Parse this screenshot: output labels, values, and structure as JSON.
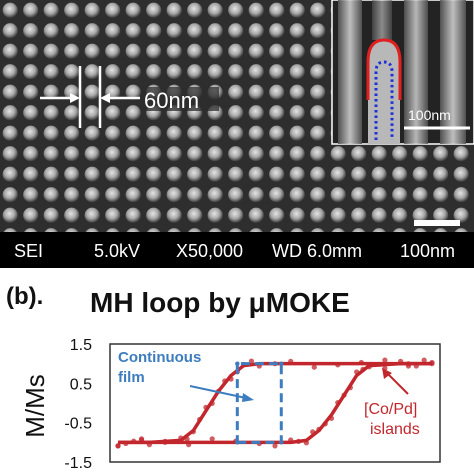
{
  "panel_a": {
    "spacing_label": "60nm",
    "inset_scale_label": "100nm",
    "info_bar": {
      "detector": "SEI",
      "voltage": "5.0kV",
      "magnification": "X50,000",
      "working_distance": "WD 6.0mm",
      "scale": "100nm"
    },
    "colors": {
      "cap_outline": "#e02020",
      "core_outline": "#1c2fd8",
      "info_bar": "#000000"
    }
  },
  "panel_b": {
    "label": "(b).",
    "annotations": {
      "continuous_1": "Continuous",
      "continuous_2": "film",
      "islands_1": "[Co/Pd]",
      "islands_2": "islands"
    },
    "colors": {
      "islands": "#c1272d",
      "film": "#3d7dbf"
    }
  },
  "chart_data": {
    "type": "line",
    "title": "MH loop by μMOKE",
    "xlabel": "",
    "ylabel": "M/Ms",
    "ylim": [
      -1.5,
      1.5
    ],
    "yticks": [
      "1.5",
      "0.5",
      "-0.5",
      "-1.5"
    ],
    "grid": false,
    "series": [
      {
        "name": "[Co/Pd] islands",
        "x": [
          0,
          5,
          10,
          20,
          24,
          28,
          32,
          36,
          40,
          45,
          55,
          70,
          85,
          100
        ],
        "y": [
          -1.0,
          -1.0,
          -1.0,
          -0.95,
          -0.7,
          -0.2,
          0.3,
          0.7,
          0.95,
          1.0,
          1.0,
          1.0,
          1.0,
          1.0
        ]
      },
      {
        "name": "[Co/Pd] islands",
        "x": [
          100,
          95,
          90,
          80,
          76,
          72,
          68,
          64,
          60,
          55,
          45,
          30,
          15,
          0
        ],
        "y": [
          1.0,
          1.0,
          1.0,
          0.95,
          0.7,
          0.2,
          -0.3,
          -0.7,
          -0.95,
          -1.0,
          -1.0,
          -1.0,
          -1.0,
          -1.0
        ]
      },
      {
        "name": "Continuous film",
        "x": [
          38,
          52,
          52,
          38,
          38
        ],
        "y": [
          -1.0,
          -1.0,
          1.0,
          1.0,
          -1.0
        ]
      }
    ]
  }
}
